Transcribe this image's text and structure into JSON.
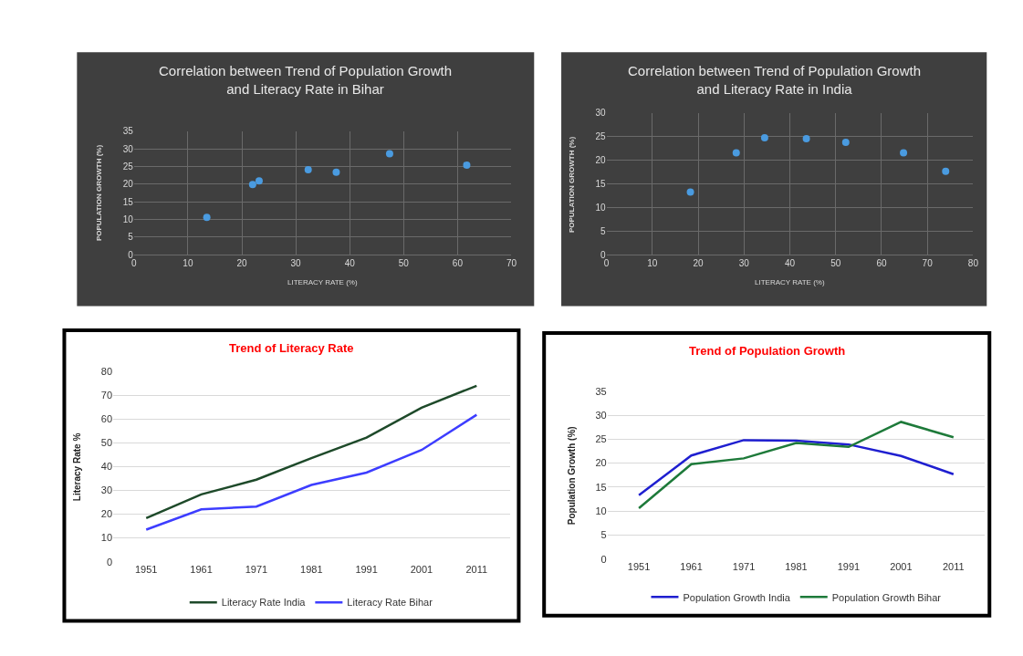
{
  "chart_data": [
    {
      "type": "scatter",
      "title": "Correlation between Trend of Population Growth and Literacy Rate in Bihar",
      "xlabel": "LITERACY RATE (%)",
      "ylabel": "POPULATION GROWTH (%)",
      "xlim": [
        0,
        70
      ],
      "xticks": [
        0,
        10,
        20,
        30,
        40,
        50,
        60,
        70
      ],
      "ylim": [
        0,
        35
      ],
      "yticks": [
        0,
        5,
        10,
        15,
        20,
        25,
        30,
        35
      ],
      "grid": true,
      "marker": "circle",
      "series": [
        {
          "color": "#4a9be0",
          "x": [
            13.5,
            22,
            23.2,
            32.3,
            37.5,
            47.4,
            61.7
          ],
          "values": [
            10.6,
            19.9,
            20.9,
            24.1,
            23.4,
            28.6,
            25.4
          ]
        }
      ]
    },
    {
      "type": "scatter",
      "title": "Correlation between Trend of Population Growth and Literacy Rate in India",
      "xlabel": "LITERACY RATE (%)",
      "ylabel": "POPULATION GROWTH (%)",
      "xlim": [
        0,
        80
      ],
      "xticks": [
        0,
        10,
        20,
        30,
        40,
        50,
        60,
        70,
        80
      ],
      "ylim": [
        0,
        30
      ],
      "yticks": [
        0,
        5,
        10,
        15,
        20,
        25,
        30
      ],
      "grid": true,
      "marker": "circle",
      "series": [
        {
          "color": "#4a9be0",
          "x": [
            18.3,
            28.3,
            34.5,
            43.6,
            52.2,
            64.8,
            74.0
          ],
          "values": [
            13.3,
            21.6,
            24.8,
            24.6,
            23.8,
            21.6,
            17.7
          ]
        }
      ]
    },
    {
      "type": "line",
      "title": "Trend of Literacy Rate",
      "ylabel": "Literacy Rate %",
      "categories": [
        "1951",
        "1961",
        "1971",
        "1981",
        "1991",
        "2001",
        "2011"
      ],
      "ylim": [
        0,
        80
      ],
      "yticks": [
        0,
        10,
        20,
        30,
        40,
        50,
        60,
        70,
        80
      ],
      "grid": "y",
      "legend": "bottom",
      "marker": "none",
      "series": [
        {
          "name": "Literacy Rate India",
          "color": "#1e4a2a",
          "values": [
            18.3,
            28.3,
            34.5,
            43.6,
            52.2,
            64.8,
            74.0
          ]
        },
        {
          "name": "Literacy Rate Bihar",
          "color": "#3d3dff",
          "values": [
            13.5,
            22.0,
            23.2,
            32.3,
            37.5,
            47.0,
            61.8
          ]
        }
      ]
    },
    {
      "type": "line",
      "title": "Trend of Population Growth",
      "ylabel": "Population Growth (%)",
      "categories": [
        "1951",
        "1961",
        "1971",
        "1981",
        "1991",
        "2001",
        "2011"
      ],
      "ylim": [
        0,
        35
      ],
      "yticks": [
        0,
        5,
        10,
        15,
        20,
        25,
        30,
        35
      ],
      "grid": "y",
      "legend": "bottom",
      "marker": "none",
      "series": [
        {
          "name": "Population Growth India",
          "color": "#1f1fd0",
          "values": [
            13.3,
            21.6,
            24.8,
            24.7,
            23.9,
            21.5,
            17.7
          ]
        },
        {
          "name": "Population Growth Bihar",
          "color": "#1e7a3a",
          "values": [
            10.6,
            19.8,
            21.0,
            24.2,
            23.4,
            28.6,
            25.4
          ]
        }
      ]
    }
  ]
}
